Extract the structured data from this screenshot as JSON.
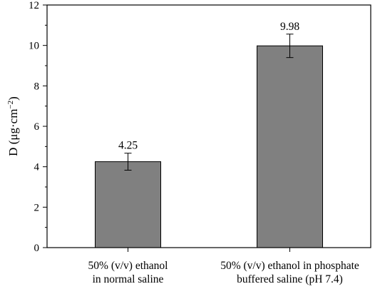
{
  "chart_data": {
    "type": "bar",
    "categories": [
      [
        "50% (v/v) ethanol",
        "in normal saline"
      ],
      [
        "50% (v/v) ethanol in phosphate",
        "buffered saline (pH 7.4)"
      ]
    ],
    "values": [
      4.25,
      9.98
    ],
    "errors": [
      0.42,
      0.58
    ],
    "data_labels": [
      "4.25",
      "9.98"
    ],
    "ylabel_main": "D (μg·cm",
    "ylabel_sup": "−2",
    "ylabel_end": ")",
    "ylim": [
      0,
      12
    ],
    "yticks": [
      "0",
      "2",
      "4",
      "6",
      "8",
      "10",
      "12"
    ],
    "bar_color": "#808080",
    "grid": false
  }
}
